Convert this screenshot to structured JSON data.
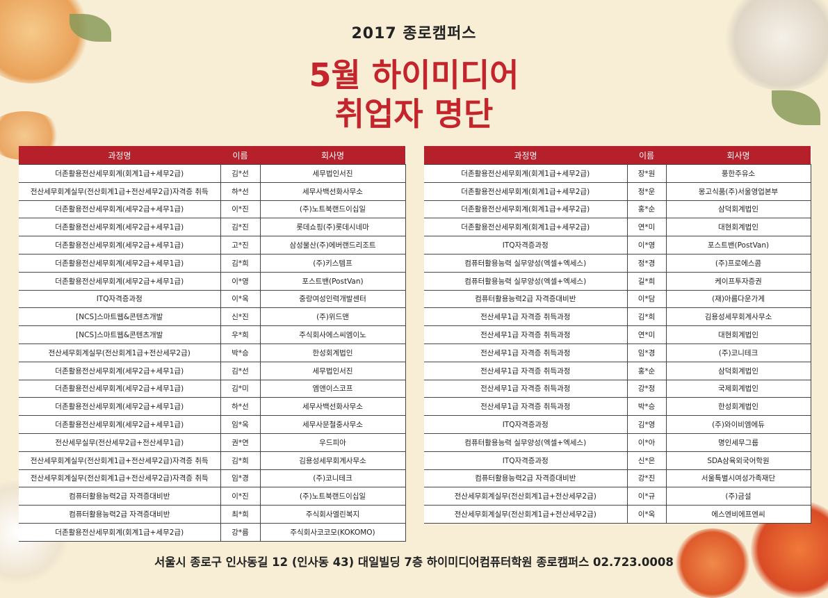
{
  "header": {
    "subtitle": "2017 종로캠퍼스",
    "title_line1": "5월 하이미디어",
    "title_line2": "취업자 명단"
  },
  "colors": {
    "accent": "#c4242b",
    "table_header": "#b5202a",
    "background": "#f7eed5"
  },
  "columns": [
    "과정명",
    "이름",
    "회사명"
  ],
  "left_table": [
    [
      "더존활용전산세무회계(회계1급+세무2급)",
      "김*선",
      "세무법인서진"
    ],
    [
      "전산세무회계실무(전산회계1급+전산세무2급)자격증 취득",
      "하*선",
      "세무사백선화사무소"
    ],
    [
      "더존활용전산세무회계(세무2급+세무1급)",
      "이*진",
      "(주)노트북랜드이십일"
    ],
    [
      "더존활용전산세무회계(세무2급+세무1급)",
      "김*진",
      "롯데쇼핑(주)롯데시네마"
    ],
    [
      "더존활용전산세무회계(세무2급+세무1급)",
      "고*진",
      "삼성물산(주)에버랜드리조트"
    ],
    [
      "더존활용전산세무회계(세무2급+세무1급)",
      "김*희",
      "(주)키스템프"
    ],
    [
      "더존활용전산세무회계(세무2급+세무1급)",
      "이*영",
      "포스트밴(PostVan)"
    ],
    [
      "ITQ자격증과정",
      "이*옥",
      "중랑여성인력개발센터"
    ],
    [
      "[NCS]스마트웹&콘텐츠개발",
      "신*진",
      "(주)위드맨"
    ],
    [
      "[NCS]스마트웹&콘텐츠개발",
      "우*희",
      "주식회사에스씨엠이노"
    ],
    [
      "전산세무회계실무(전산회계1급+전산세무2급)",
      "박*승",
      "한성회계법인"
    ],
    [
      "더존활용전산세무회계(세무2급+세무1급)",
      "김*선",
      "세무법인서진"
    ],
    [
      "더존활용전산세무회계(세무2급+세무1급)",
      "김*미",
      "엠앤이스코프"
    ],
    [
      "더존활용전산세무회계(세무2급+세무1급)",
      "하*선",
      "세무사백선화사무소"
    ],
    [
      "더존활용전산세무회계(세무2급+세무1급)",
      "임*옥",
      "세무사문철중사무소"
    ],
    [
      "전산세무실무(전산세무2급+전산세무1급)",
      "권*연",
      "우드피아"
    ],
    [
      "전산세무회계실무(전산회계1급+전산세무2급)자격증 취득",
      "김*희",
      "김용성세무회계사무소"
    ],
    [
      "전산세무회계실무(전산회계1급+전산세무2급)자격증 취득",
      "임*경",
      "(주)코니테크"
    ],
    [
      "컴퓨터활용능력2급 자격증대비반",
      "이*진",
      "(주)노트북랜드이십일"
    ],
    [
      "컴퓨터활용능력2급 자격증대비반",
      "최*희",
      "주식회사엘린복지"
    ],
    [
      "더존활용전산세무회계(회계1급+세무2급)",
      "강*름",
      "주식회사코코모(KOKOMO)"
    ]
  ],
  "right_table": [
    [
      "더존활용전산세무회계(회계1급+세무2급)",
      "장*원",
      "풍한주유소"
    ],
    [
      "더존활용전산세무회계(회계1급+세무2급)",
      "정*운",
      "몽고식품(주)서울영업본부"
    ],
    [
      "더존활용전산세무회계(회계1급+세무2급)",
      "홍*순",
      "삼덕회계법인"
    ],
    [
      "더존활용전산세무회계(회계1급+세무2급)",
      "연*미",
      "대현회계법인"
    ],
    [
      "ITQ자격증과정",
      "이*영",
      "포스트밴(PostVan)"
    ],
    [
      "컴퓨터활용능력 실무양성(엑셀+엑세스)",
      "정*경",
      "(주)프로에스콤"
    ],
    [
      "컴퓨터활용능력 실무양성(엑셀+엑세스)",
      "길*희",
      "케이프투자증권"
    ],
    [
      "컴퓨터활용능력2급 자격증대비반",
      "이*담",
      "(재)아름다운가게"
    ],
    [
      "전산세무1급 자격증 취득과정",
      "김*희",
      "김용성세무회계사무소"
    ],
    [
      "전산세무1급 자격증 취득과정",
      "연*미",
      "대현회계법인"
    ],
    [
      "전산세무1급 자격증 취득과정",
      "임*경",
      "(주)코니테크"
    ],
    [
      "전산세무1급 자격증 취득과정",
      "홍*순",
      "삼덕회계법인"
    ],
    [
      "전산세무1급 자격증 취득과정",
      "강*정",
      "국제회계법인"
    ],
    [
      "전산세무1급 자격증 취득과정",
      "박*승",
      "한성회계법인"
    ],
    [
      "ITQ자격증과정",
      "김*영",
      "(주)와이비엠에듀"
    ],
    [
      "컴퓨터활용능력 실무양성(엑셀+엑세스)",
      "이*아",
      "명인세무그룹"
    ],
    [
      "ITQ자격증과정",
      "신*은",
      "SDA삼육외국어학원"
    ],
    [
      "컴퓨터활용능력2급 자격증대비반",
      "강*진",
      "서울특별시여성가족재단"
    ],
    [
      "전산세무회계실무(전산회계1급+전산세무2급)",
      "이*규",
      "(주)금설"
    ],
    [
      "전산세무회계실무(전산회계1급+전산세무2급)",
      "이*옥",
      "에스엔비에프엔씨"
    ]
  ],
  "footer": {
    "address": "서울시 종로구 인사동길 12 (인사동 43) 대일빌딩 7층 하이미디어컴퓨터학원 종로캠퍼스  02.723.0008"
  }
}
